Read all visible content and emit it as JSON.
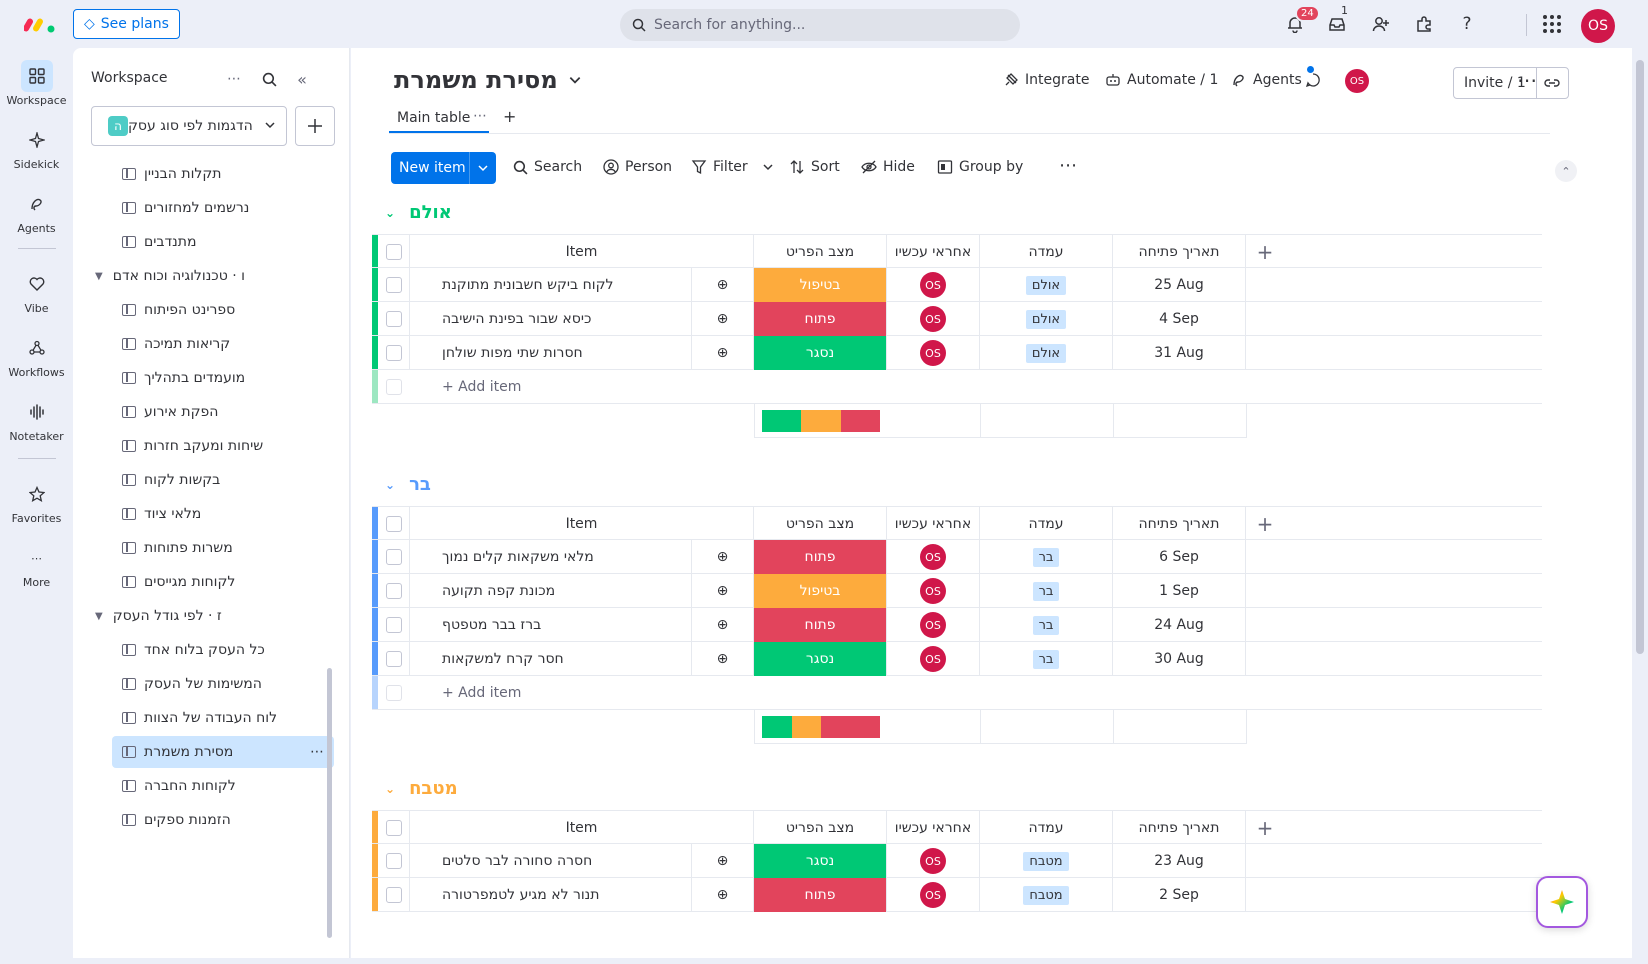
{
  "topbar": {
    "see_plans": "See plans",
    "search_placeholder": "Search for anything...",
    "notifications_count": "24",
    "inbox_count": "1",
    "user_initials": "OS"
  },
  "rail": {
    "items": [
      {
        "label": "Workspace"
      },
      {
        "label": "Sidekick"
      },
      {
        "label": "Agents"
      },
      {
        "label": "Vibe"
      },
      {
        "label": "Workflows"
      },
      {
        "label": "Notetaker"
      },
      {
        "label": "Favorites"
      },
      {
        "label": "More"
      }
    ]
  },
  "panel": {
    "title": "Workspace",
    "workspace_name": "הדגמות לפי סוג עסק",
    "workspace_badge": "ה",
    "items": [
      {
        "label": "תקלות הבניין"
      },
      {
        "label": "נרשמים למחזורים"
      },
      {
        "label": "מתנדבים"
      }
    ],
    "folder1": "ו · טכנולוגיה וכוח אדם",
    "folder1_items": [
      {
        "label": "ספרינט הפיתוח"
      },
      {
        "label": "קריאות תמיכה"
      },
      {
        "label": "מועמדים בתהליך"
      },
      {
        "label": "הפקת אירוע"
      },
      {
        "label": "שיחות ומעקב חזרות"
      },
      {
        "label": "בקשות לקוח"
      },
      {
        "label": "מלאי ציוד"
      },
      {
        "label": "משרות פתוחות"
      },
      {
        "label": "לקוחות מגייסים"
      }
    ],
    "folder2": "ז · לפי גודל העסק",
    "folder2_items": [
      {
        "label": "כל העסק בלוח אחד"
      },
      {
        "label": "המשימות של העסק"
      },
      {
        "label": "לוח העבודה של הצוות"
      },
      {
        "label": "מסירת משמרת"
      },
      {
        "label": "לקוחות החברה"
      },
      {
        "label": "הזמנות ספקים"
      }
    ]
  },
  "board": {
    "title": "מסירת משמרת",
    "integrate": "Integrate",
    "automate": "Automate / 1",
    "agents": "Agents",
    "invite": "Invite / 1",
    "owner_initials": "OS",
    "tab_main": "Main table",
    "new_item": "New item",
    "tools": {
      "search": "Search",
      "person": "Person",
      "filter": "Filter",
      "sort": "Sort",
      "hide": "Hide",
      "group_by": "Group by"
    },
    "columns": {
      "item": "Item",
      "status": "מצב הפריט",
      "owner": "אחראי עכשיו",
      "station": "עמדה",
      "date": "תאריך פתיחה"
    },
    "add_item": "+ Add item",
    "groups": [
      {
        "name": "אולם",
        "color": "#00c875",
        "rows": [
          {
            "item": "לקוח ביקש חשבונית מתוקנת",
            "status": "בטיפול",
            "status_color": "#fdab3d",
            "owner": "OS",
            "station": "אולם",
            "date": "25 Aug"
          },
          {
            "item": "כיסא שבור בפינת הישיבה",
            "status": "פתוח",
            "status_color": "#e2445c",
            "owner": "OS",
            "station": "אולם",
            "date": "4 Sep"
          },
          {
            "item": "חסרות שתי מפות שולחן",
            "status": "נסגר",
            "status_color": "#00c875",
            "owner": "OS",
            "station": "אולם",
            "date": "31 Aug"
          }
        ],
        "summary": [
          {
            "color": "#00c875",
            "share": 0.333
          },
          {
            "color": "#fdab3d",
            "share": 0.333
          },
          {
            "color": "#e2445c",
            "share": 0.334
          }
        ]
      },
      {
        "name": "בר",
        "color": "#579bfc",
        "rows": [
          {
            "item": "מלאי משקאות קלים נמוך",
            "status": "פתוח",
            "status_color": "#e2445c",
            "owner": "OS",
            "station": "בר",
            "date": "6 Sep"
          },
          {
            "item": "מכונת קפה תקועה",
            "status": "בטיפול",
            "status_color": "#fdab3d",
            "owner": "OS",
            "station": "בר",
            "date": "1 Sep"
          },
          {
            "item": "ברז בבר מטפטף",
            "status": "פתוח",
            "status_color": "#e2445c",
            "owner": "OS",
            "station": "בר",
            "date": "24 Aug"
          },
          {
            "item": "חסר קרח למשקאות",
            "status": "נסגר",
            "status_color": "#00c875",
            "owner": "OS",
            "station": "בר",
            "date": "30 Aug"
          }
        ],
        "summary": [
          {
            "color": "#00c875",
            "share": 0.25
          },
          {
            "color": "#fdab3d",
            "share": 0.25
          },
          {
            "color": "#e2445c",
            "share": 0.5
          }
        ]
      },
      {
        "name": "מטבח",
        "color": "#fdab3d",
        "rows": [
          {
            "item": "חסרה סחורה לבר סלטים",
            "status": "נסגר",
            "status_color": "#00c875",
            "owner": "OS",
            "station": "מטבח",
            "date": "23 Aug"
          },
          {
            "item": "תנור לא מגיע לטמפרטורה",
            "status": "פתוח",
            "status_color": "#e2445c",
            "owner": "OS",
            "station": "מטבח",
            "date": "2 Sep"
          }
        ]
      }
    ]
  }
}
